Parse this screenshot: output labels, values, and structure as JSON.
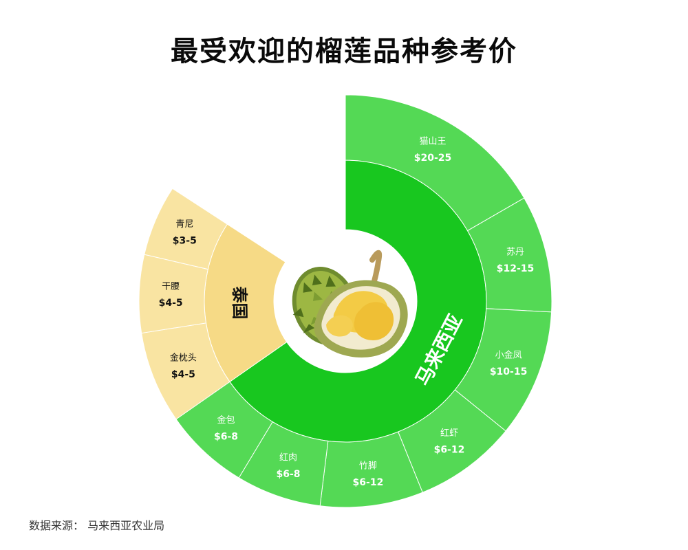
{
  "title": "最受欢迎的榴莲品种参考价",
  "source": "数据来源：  马来西亚农业局",
  "colors": {
    "malaysia_inner": "#18c71f",
    "malaysia_outer": "#54d955",
    "thailand_inner": "#f6da86",
    "thailand_outer": "#f9e4a2",
    "divider": "#ffffff",
    "label_light": "#ffffff",
    "label_dark": "#111111"
  },
  "center_image": "durian-icon",
  "chart_data": {
    "type": "sunburst",
    "countries": [
      {
        "name": "马来西亚",
        "theme": "malaysia",
        "varieties": [
          {
            "name": "猫山王",
            "price": "$20-25",
            "share": 0.1667
          },
          {
            "name": "苏丹",
            "price": "$12-15",
            "share": 0.0917
          },
          {
            "name": "小金凤",
            "price": "$10-15",
            "share": 0.1
          },
          {
            "name": "红虾",
            "price": "$6-12",
            "share": 0.0806
          },
          {
            "name": "竹脚",
            "price": "$6-12",
            "share": 0.0806
          },
          {
            "name": "红肉",
            "price": "$6-8",
            "share": 0.0667
          },
          {
            "name": "金包",
            "price": "$6-8",
            "share": 0.0667
          }
        ]
      },
      {
        "name": "泰国",
        "theme": "thailand",
        "varieties": [
          {
            "name": "金枕头",
            "price": "$4-5",
            "share": 0.0722
          },
          {
            "name": "干腰",
            "price": "$4-5",
            "share": 0.0611
          },
          {
            "name": "青尼",
            "price": "$3-5",
            "share": 0.0556
          }
        ]
      }
    ]
  }
}
